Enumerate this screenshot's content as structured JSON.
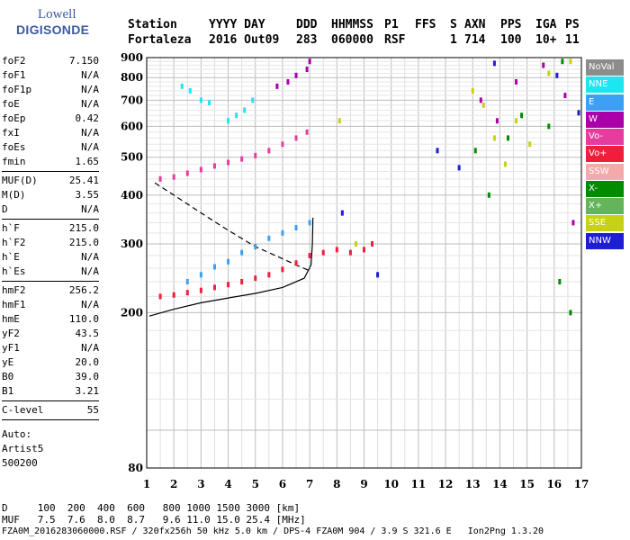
{
  "logo": {
    "line1": "Lowell",
    "line2": "DIGISONDE"
  },
  "header": {
    "row1": [
      "Station",
      "YYYY DAY",
      "DDD",
      "HHMMSS",
      "P1",
      "FFS",
      "S",
      "AXN",
      "PPS",
      "IGA",
      "PS"
    ],
    "row2": [
      "Fortaleza",
      "2016 Out09",
      "283",
      "060000",
      "RSF",
      "",
      "1",
      "714",
      "100",
      "10+",
      "11"
    ]
  },
  "params": [
    [
      {
        "k": "foF2",
        "v": "7.150"
      },
      {
        "k": "foF1",
        "v": "N/A"
      },
      {
        "k": "foF1p",
        "v": "N/A"
      },
      {
        "k": "foE",
        "v": "N/A"
      },
      {
        "k": "foEp",
        "v": "0.42"
      },
      {
        "k": "fxI",
        "v": "N/A"
      },
      {
        "k": "foEs",
        "v": "N/A"
      },
      {
        "k": "fmin",
        "v": "1.65"
      }
    ],
    [
      {
        "k": "MUF(D)",
        "v": "25.41"
      },
      {
        "k": "M(D)",
        "v": "3.55"
      },
      {
        "k": "D",
        "v": "N/A"
      }
    ],
    [
      {
        "k": "h`F",
        "v": "215.0"
      },
      {
        "k": "h`F2",
        "v": "215.0"
      },
      {
        "k": "h`E",
        "v": "N/A"
      },
      {
        "k": "h`Es",
        "v": "N/A"
      }
    ],
    [
      {
        "k": "hmF2",
        "v": "256.2"
      },
      {
        "k": "hmF1",
        "v": "N/A"
      },
      {
        "k": "hmE",
        "v": "110.0"
      },
      {
        "k": "yF2",
        "v": "43.5"
      },
      {
        "k": "yF1",
        "v": "N/A"
      },
      {
        "k": "yE",
        "v": "20.0"
      },
      {
        "k": "B0",
        "v": "39.0"
      },
      {
        "k": "B1",
        "v": "3.21"
      }
    ],
    [
      {
        "k": "C-level",
        "v": "55"
      }
    ]
  ],
  "autoscaling": [
    "Auto:",
    "Artist5",
    "500200"
  ],
  "legend": [
    {
      "label": "NoVal",
      "color": "#8c8c8c"
    },
    {
      "label": "NNE",
      "color": "#1ee6f0"
    },
    {
      "label": "E",
      "color": "#3ca0f5"
    },
    {
      "label": "W",
      "color": "#aa00aa"
    },
    {
      "label": "Vo-",
      "color": "#e63ca0"
    },
    {
      "label": "Vo+",
      "color": "#f01e3c"
    },
    {
      "label": "SSW",
      "color": "#f5aaaa"
    },
    {
      "label": "X-",
      "color": "#008c00"
    },
    {
      "label": "X+",
      "color": "#64b45a"
    },
    {
      "label": "SSE",
      "color": "#c8d214"
    },
    {
      "label": "NNW",
      "color": "#1e1ed2"
    }
  ],
  "footer": {
    "d_line": "D     100  200  400  600   800 1000 1500 3000 [km]",
    "muf_line": "MUF   7.5  7.6  8.0  8.7   9.6 11.0 15.0 25.4 [MHz]",
    "info_line": "FZA0M_2016283060000.RSF / 320fx256h 50 kHz 5.0 km / DPS-4 FZA0M 904 / 3.9 S 321.6 E   Ion2Png 1.3.20"
  },
  "chart_data": {
    "type": "scatter",
    "title": "",
    "xlabel": "",
    "ylabel": "",
    "xlim": [
      1,
      17
    ],
    "ylim": [
      80,
      900
    ],
    "y_scale": "log",
    "x_ticks": [
      1,
      2,
      3,
      4,
      5,
      6,
      7,
      8,
      9,
      10,
      11,
      12,
      13,
      14,
      15,
      16,
      17
    ],
    "y_ticks": [
      80,
      200,
      300,
      400,
      500,
      600,
      700,
      800,
      900
    ],
    "grid": true,
    "series": [
      {
        "name": "Vo+",
        "color": "#f01e3c",
        "points": [
          [
            1.5,
            220
          ],
          [
            2.0,
            222
          ],
          [
            2.5,
            225
          ],
          [
            3.0,
            228
          ],
          [
            3.5,
            232
          ],
          [
            4.0,
            236
          ],
          [
            4.5,
            240
          ],
          [
            5.0,
            245
          ],
          [
            5.5,
            250
          ],
          [
            6.0,
            258
          ],
          [
            6.5,
            268
          ],
          [
            7.0,
            280
          ],
          [
            7.5,
            285
          ],
          [
            8.0,
            290
          ],
          [
            8.5,
            285
          ],
          [
            9.0,
            290
          ],
          [
            9.3,
            300
          ]
        ]
      },
      {
        "name": "E",
        "color": "#3ca0f5",
        "points": [
          [
            2.5,
            240
          ],
          [
            3.0,
            250
          ],
          [
            3.5,
            262
          ],
          [
            4.0,
            270
          ],
          [
            4.5,
            285
          ],
          [
            5.0,
            295
          ],
          [
            5.5,
            310
          ],
          [
            6.0,
            320
          ],
          [
            6.5,
            330
          ],
          [
            7.0,
            340
          ]
        ]
      },
      {
        "name": "Vo-",
        "color": "#e63ca0",
        "points": [
          [
            1.5,
            440
          ],
          [
            2.0,
            445
          ],
          [
            2.5,
            455
          ],
          [
            3.0,
            465
          ],
          [
            3.5,
            475
          ],
          [
            4.0,
            485
          ],
          [
            4.5,
            495
          ],
          [
            5.0,
            505
          ],
          [
            5.5,
            520
          ],
          [
            6.0,
            540
          ],
          [
            6.5,
            560
          ],
          [
            6.9,
            580
          ]
        ]
      },
      {
        "name": "NNE",
        "color": "#1ee6f0",
        "points": [
          [
            2.3,
            760
          ],
          [
            2.6,
            740
          ],
          [
            3.0,
            700
          ],
          [
            3.3,
            690
          ],
          [
            4.0,
            620
          ],
          [
            4.3,
            640
          ],
          [
            4.6,
            660
          ],
          [
            4.9,
            700
          ]
        ]
      },
      {
        "name": "W",
        "color": "#aa00aa",
        "points": [
          [
            5.8,
            760
          ],
          [
            6.2,
            780
          ],
          [
            6.5,
            810
          ],
          [
            6.9,
            840
          ],
          [
            7.0,
            880
          ],
          [
            13.3,
            700
          ],
          [
            13.9,
            620
          ],
          [
            14.6,
            780
          ],
          [
            15.6,
            860
          ],
          [
            16.4,
            720
          ],
          [
            16.7,
            340
          ]
        ]
      },
      {
        "name": "X-",
        "color": "#008c00",
        "points": [
          [
            13.1,
            520
          ],
          [
            13.6,
            400
          ],
          [
            14.3,
            560
          ],
          [
            14.8,
            640
          ],
          [
            15.8,
            600
          ],
          [
            16.2,
            240
          ],
          [
            16.6,
            200
          ],
          [
            16.3,
            880
          ]
        ]
      },
      {
        "name": "SSE",
        "color": "#c8d214",
        "points": [
          [
            8.1,
            620
          ],
          [
            8.7,
            300
          ],
          [
            13.0,
            740
          ],
          [
            13.4,
            680
          ],
          [
            13.8,
            560
          ],
          [
            14.2,
            480
          ],
          [
            14.6,
            620
          ],
          [
            15.1,
            540
          ],
          [
            15.8,
            820
          ],
          [
            16.6,
            880
          ]
        ]
      },
      {
        "name": "NNW",
        "color": "#1e1ed2",
        "points": [
          [
            8.2,
            360
          ],
          [
            9.5,
            250
          ],
          [
            11.7,
            520
          ],
          [
            12.5,
            470
          ],
          [
            13.8,
            870
          ],
          [
            16.1,
            810
          ],
          [
            16.9,
            650
          ]
        ]
      }
    ],
    "traces": [
      {
        "name": "profile",
        "style": "dashed",
        "points": [
          [
            1.3,
            430
          ],
          [
            2.0,
            400
          ],
          [
            3.0,
            360
          ],
          [
            4.0,
            325
          ],
          [
            5.0,
            295
          ],
          [
            6.0,
            275
          ],
          [
            6.5,
            265
          ],
          [
            7.0,
            256
          ]
        ]
      },
      {
        "name": "virtual_height",
        "style": "solid",
        "points": [
          [
            1.1,
            196
          ],
          [
            2.0,
            204
          ],
          [
            3.0,
            212
          ],
          [
            4.0,
            218
          ],
          [
            5.0,
            224
          ],
          [
            6.0,
            232
          ],
          [
            6.8,
            245
          ],
          [
            7.05,
            265
          ],
          [
            7.1,
            300
          ],
          [
            7.12,
            350
          ]
        ]
      }
    ]
  }
}
